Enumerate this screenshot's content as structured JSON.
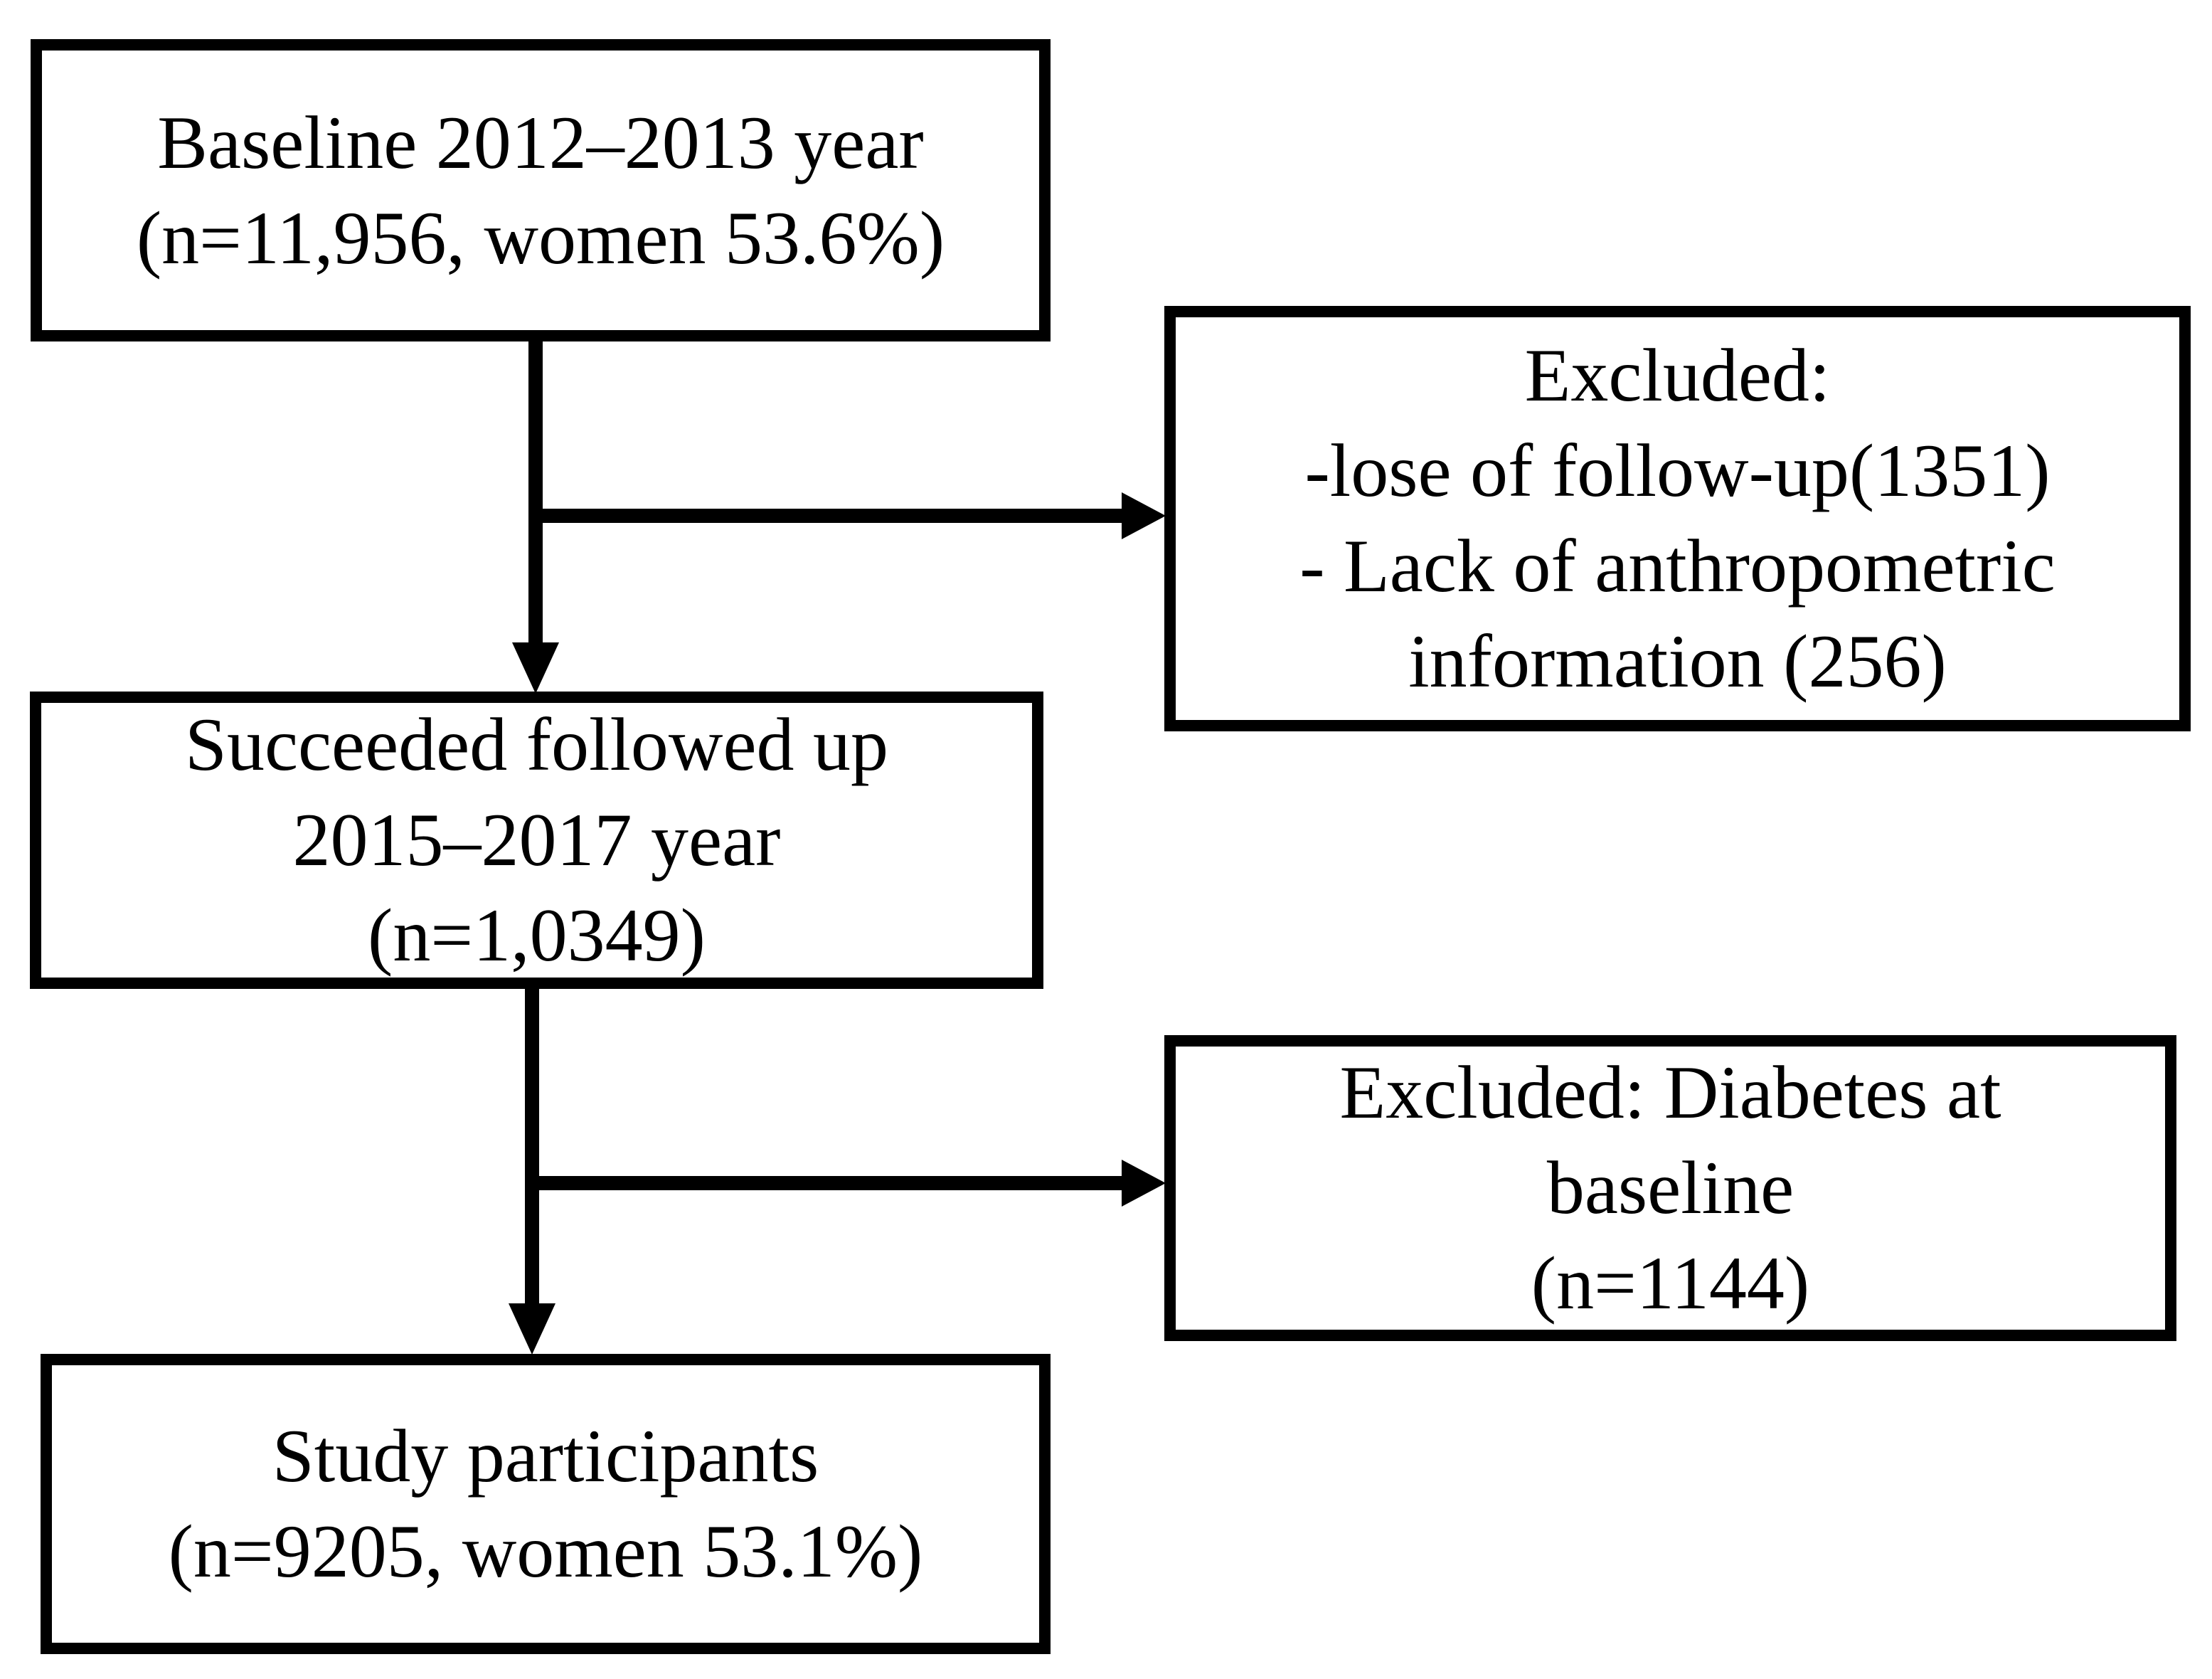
{
  "colors": {
    "border": "#000000",
    "background": "#ffffff",
    "text": "#000000"
  },
  "boxes": {
    "baseline": {
      "lines": [
        "Baseline 2012–2013 year",
        "(n=11,956, women 53.6%)"
      ]
    },
    "excluded1": {
      "lines": [
        "Excluded:",
        "-lose of follow-up(1351)",
        "- Lack of anthropometric",
        "information (256)"
      ]
    },
    "followup": {
      "lines": [
        "Succeeded followed up",
        "2015–2017 year",
        "(n=1,0349)"
      ]
    },
    "excluded2": {
      "lines": [
        "Excluded: Diabetes at",
        "baseline",
        "(n=1144)"
      ]
    },
    "participants": {
      "lines": [
        "Study participants",
        "(n=9205, women 53.1%)"
      ]
    }
  }
}
